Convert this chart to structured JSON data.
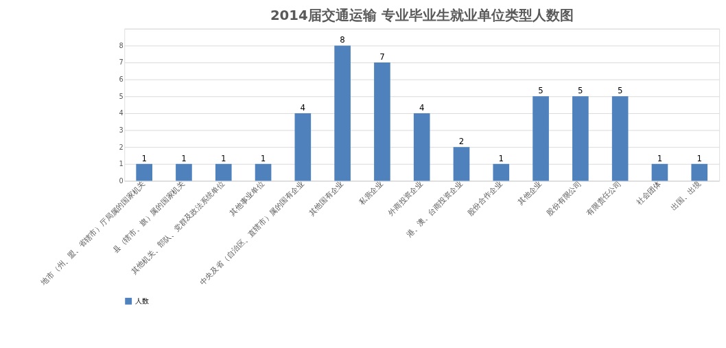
{
  "chart_data": {
    "type": "bar",
    "title": "2014届交通运输 专业毕业生就业单位类型人数图",
    "categories": [
      "地市（州、盟、省辖市）厅局属的国家机关",
      "县（辖市、旗）属的国家机关",
      "其他机关、部队、党群及政法系统单位",
      "其他事业单位",
      "中央及省（自治区、直辖市）属的国有企业",
      "其他国有企业",
      "私营企业",
      "外商投资企业",
      "港、澳、台商投资企业",
      "股份合作企业",
      "其他企业",
      "股份有限公司",
      "有限责任公司",
      "社会团体",
      "出国、出境"
    ],
    "series": [
      {
        "name": "人数",
        "color": "#4f81bd",
        "values": [
          1,
          1,
          1,
          1,
          4,
          8,
          7,
          4,
          2,
          1,
          5,
          5,
          5,
          1,
          1
        ]
      }
    ],
    "ylim": [
      0,
      9
    ],
    "yticks": [
      0,
      1,
      2,
      3,
      4,
      5,
      6,
      7,
      8,
      {
        "value": 9,
        "label": null
      }
    ],
    "grid": "y",
    "legend": "bottom",
    "data_labels": true
  }
}
